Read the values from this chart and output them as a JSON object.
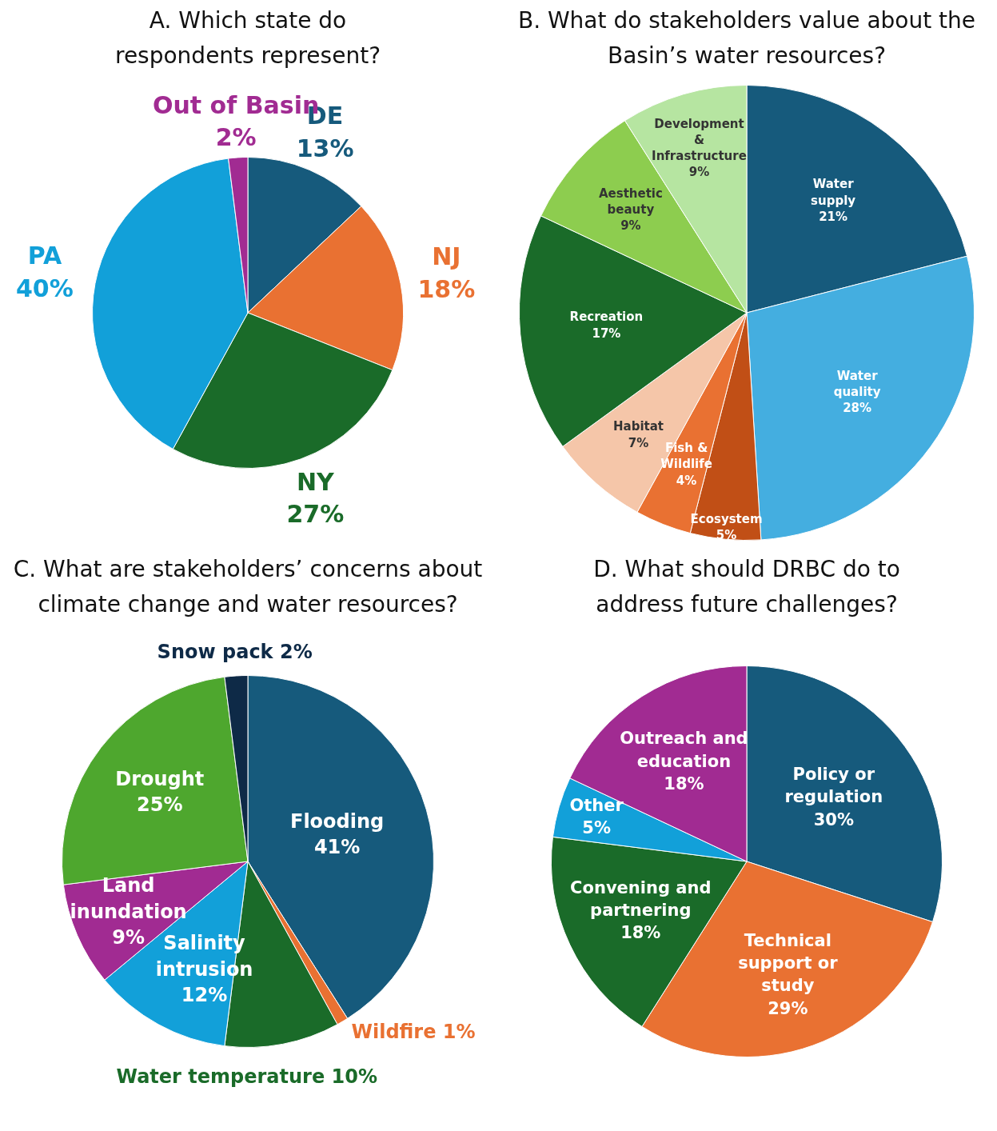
{
  "chart_data": [
    {
      "type": "pie",
      "title": "A. Which state do respondents represent?",
      "categories": [
        "DE",
        "NJ",
        "NY",
        "PA",
        "Out of Basin"
      ],
      "values": [
        13,
        18,
        27,
        40,
        2
      ],
      "value_labels": [
        "13%",
        "18%",
        "27%",
        "40%",
        "2%"
      ],
      "colors": [
        "#165a7c",
        "#e97132",
        "#1a6b29",
        "#12a0d9",
        "#a12b92"
      ],
      "legend": false
    },
    {
      "type": "pie",
      "title": "B. What do stakeholders value about the Basin’s water resources?",
      "categories": [
        "Water supply",
        "Water quality",
        "Ecosystem",
        "Fish & Wildlife",
        "Habitat",
        "Recreation",
        "Aesthetic beauty",
        "Development & Infrastructure"
      ],
      "values": [
        21,
        28,
        5,
        4,
        7,
        17,
        9,
        9
      ],
      "value_labels": [
        "21%",
        "28%",
        "5%",
        "4%",
        "7%",
        "17%",
        "9%",
        "9%"
      ],
      "colors": [
        "#165a7c",
        "#44aee0",
        "#c14f16",
        "#e97132",
        "#f5c6a9",
        "#1a6b29",
        "#8dcd4f",
        "#b6e5a1"
      ],
      "legend": false
    },
    {
      "type": "pie",
      "title": "C. What are stakeholders’ concerns about climate change and water resources?",
      "categories": [
        "Flooding",
        "Wildfire",
        "Water temperature",
        "Salinity intrusion",
        "Land inundation",
        "Drought",
        "Snow pack"
      ],
      "values": [
        41,
        1,
        10,
        12,
        9,
        25,
        2
      ],
      "value_labels": [
        "41%",
        "1%",
        "10%",
        "12%",
        "9%",
        "25%",
        "2%"
      ],
      "colors": [
        "#165a7c",
        "#e97132",
        "#1a6b29",
        "#12a0d9",
        "#a12b92",
        "#4ea72e",
        "#0e2a47"
      ],
      "legend": false
    },
    {
      "type": "pie",
      "title": "D. What should DRBC do to address future challenges?",
      "categories": [
        "Policy or regulation",
        "Technical support or study",
        "Convening and partnering",
        "Other",
        "Outreach and education"
      ],
      "values": [
        30,
        29,
        18,
        5,
        18
      ],
      "value_labels": [
        "30%",
        "29%",
        "18%",
        "5%",
        "18%"
      ],
      "colors": [
        "#165a7c",
        "#e97132",
        "#1a6b29",
        "#12a0d9",
        "#a12b92"
      ],
      "legend": false
    }
  ]
}
